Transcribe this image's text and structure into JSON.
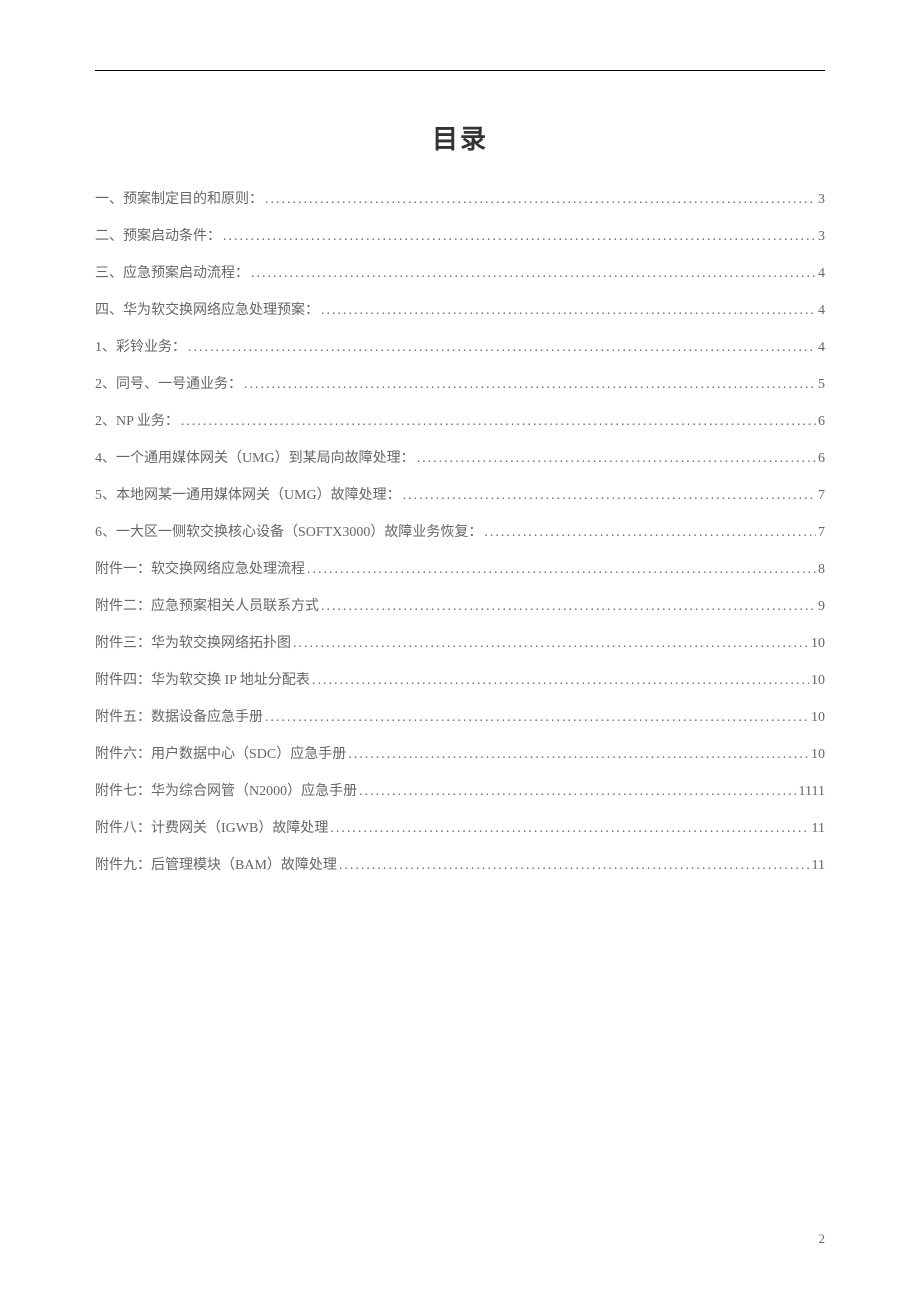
{
  "document": {
    "title": "目录",
    "page_number": "2",
    "background_color": "#ffffff",
    "text_color": "#666666",
    "title_color": "#333333",
    "title_fontsize": 26,
    "entry_fontsize": 14,
    "line_spacing": 17
  },
  "toc": {
    "entries": [
      {
        "label": "一、预案制定目的和原则：",
        "page": "3"
      },
      {
        "label": "二、预案启动条件：",
        "page": "3"
      },
      {
        "label": "三、应急预案启动流程：",
        "page": "4"
      },
      {
        "label": "四、华为软交换网络应急处理预案：",
        "page": "4"
      },
      {
        "label": "1、彩铃业务：",
        "page": "4"
      },
      {
        "label": "2、同号、一号通业务：",
        "page": "5"
      },
      {
        "label": "2、NP 业务：",
        "page": "6"
      },
      {
        "label": "4、一个通用媒体网关（UMG）到某局向故障处理：",
        "page": "6"
      },
      {
        "label": "5、本地网某一通用媒体网关（UMG）故障处理：",
        "page": "7"
      },
      {
        "label": "6、一大区一侧软交换核心设备（SOFTX3000）故障业务恢复：",
        "page": "7"
      },
      {
        "label": "附件一：软交换网络应急处理流程",
        "page": "8"
      },
      {
        "label": "附件二：应急预案相关人员联系方式",
        "page": "9"
      },
      {
        "label": "附件三：华为软交换网络拓扑图",
        "page": "10"
      },
      {
        "label": "附件四：华为软交换 IP 地址分配表",
        "page": "10"
      },
      {
        "label": "附件五：数据设备应急手册",
        "page": "10"
      },
      {
        "label": "附件六：用户数据中心（SDC）应急手册",
        "page": "10"
      },
      {
        "label": "附件七：华为综合网管（N2000）应急手册",
        "page": "1111"
      },
      {
        "label": "附件八：计费网关（IGWB）故障处理",
        "page": "11"
      },
      {
        "label": "附件九：后管理模块（BAM）故障处理",
        "page": "11"
      }
    ]
  }
}
